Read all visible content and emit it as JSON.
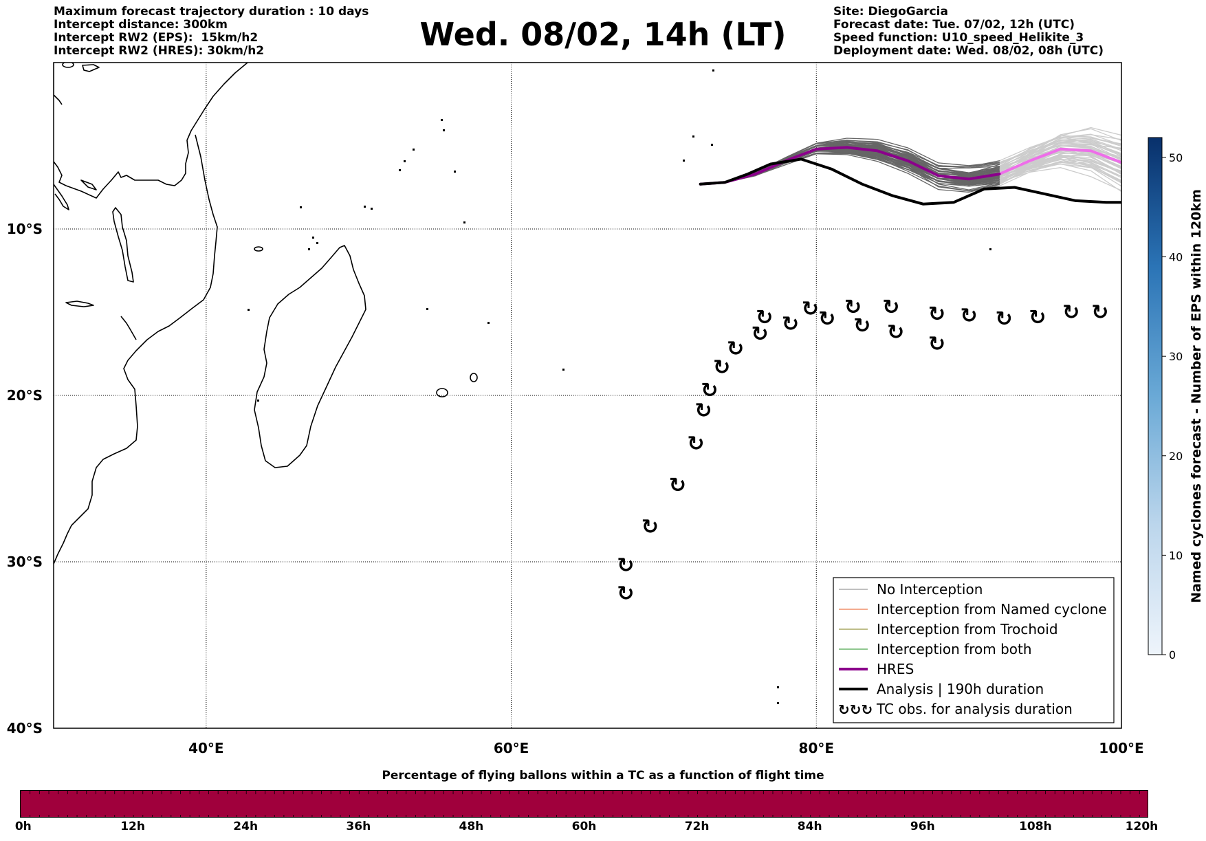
{
  "header": {
    "left_lines": [
      "Maximum forecast trajectory duration : 10 days",
      "Intercept distance: 300km",
      "Intercept RW2 (EPS):  15km/h2",
      "Intercept RW2 (HRES): 30km/h2"
    ],
    "title": "Wed. 08/02, 14h (LT)",
    "right_lines": [
      "Site: DiegoGarcia",
      "Forecast date: Tue. 07/02, 12h (UTC)",
      "Speed function: U10_speed_Helikite_3",
      "Deployment date: Wed. 08/02, 08h (UTC)"
    ]
  },
  "map": {
    "lon_range": [
      30,
      100
    ],
    "lat_range": [
      -40,
      0
    ],
    "lat_labels": [
      {
        "lat": -10,
        "text": "10°S"
      },
      {
        "lat": -20,
        "text": "20°S"
      },
      {
        "lat": -30,
        "text": "30°S"
      },
      {
        "lat": -40,
        "text": "40°S"
      }
    ],
    "lon_labels": [
      {
        "lon": 40,
        "text": "40°E"
      },
      {
        "lon": 60,
        "text": "60°E"
      },
      {
        "lon": 80,
        "text": "80°E"
      },
      {
        "lon": 100,
        "text": "100°E"
      }
    ],
    "deployment_site": {
      "lon": 72.4,
      "lat": -7.3
    },
    "hres_track": [
      [
        72.4,
        -7.3
      ],
      [
        74,
        -7.2
      ],
      [
        76,
        -6.7
      ],
      [
        78,
        -5.9
      ],
      [
        80,
        -5.2
      ],
      [
        82,
        -5.1
      ],
      [
        84,
        -5.3
      ],
      [
        86,
        -5.9
      ],
      [
        88,
        -6.8
      ],
      [
        90,
        -7.0
      ],
      [
        92,
        -6.7
      ],
      [
        94,
        -5.9
      ],
      [
        96,
        -5.2
      ],
      [
        98,
        -5.3
      ],
      [
        100,
        -6.0
      ]
    ],
    "hres_split_lon": 92,
    "colors": {
      "hres_primary": "#8b008b",
      "hres_extended": "#ee6ee9",
      "analysis": "#000000",
      "ensemble_primary": "#666666",
      "ensemble_extended": "#cccccc",
      "interception_named_cyclone": "#e8541c",
      "interception_trochoid": "#7e7b13",
      "interception_both": "#1f8f1f",
      "no_interception": "#808080",
      "percentage_bar": "#a0003c"
    },
    "analysis_track": [
      [
        72.4,
        -7.3
      ],
      [
        74,
        -7.2
      ],
      [
        75.5,
        -6.7
      ],
      [
        77,
        -6.1
      ],
      [
        79,
        -5.8
      ],
      [
        81,
        -6.4
      ],
      [
        83,
        -7.3
      ],
      [
        85,
        -8.0
      ],
      [
        87,
        -8.5
      ],
      [
        89,
        -8.4
      ],
      [
        91,
        -7.6
      ],
      [
        93,
        -7.5
      ],
      [
        95,
        -7.9
      ],
      [
        97,
        -8.3
      ],
      [
        99,
        -8.4
      ],
      [
        100,
        -8.4
      ]
    ],
    "tc_observations": [
      [
        67.5,
        -31.9
      ],
      [
        67.5,
        -30.2
      ],
      [
        69.1,
        -27.9
      ],
      [
        70.9,
        -25.4
      ],
      [
        72.1,
        -22.9
      ],
      [
        72.6,
        -20.9
      ],
      [
        73,
        -19.7
      ],
      [
        73.8,
        -18.3
      ],
      [
        74.7,
        -17.2
      ],
      [
        76.3,
        -16.3
      ],
      [
        76.6,
        -15.3
      ],
      [
        78.3,
        -15.7
      ],
      [
        79.6,
        -14.8
      ],
      [
        80.7,
        -15.4
      ],
      [
        82.4,
        -14.7
      ],
      [
        83,
        -15.8
      ],
      [
        84.9,
        -14.7
      ],
      [
        85.2,
        -16.2
      ],
      [
        87.9,
        -16.9
      ],
      [
        87.9,
        -15.1
      ],
      [
        90,
        -15.2
      ],
      [
        92.3,
        -15.4
      ],
      [
        94.5,
        -15.3
      ],
      [
        96.7,
        -15
      ],
      [
        98.6,
        -15
      ]
    ],
    "tc_symbol": "↻"
  },
  "legend": {
    "items": [
      {
        "label": "No Interception",
        "color": "#808080",
        "width": 1
      },
      {
        "label": "Interception from Named cyclone",
        "color": "#e8541c",
        "width": 1
      },
      {
        "label": "Interception from Trochoid",
        "color": "#7e7b13",
        "width": 1
      },
      {
        "label": "Interception from both",
        "color": "#1f8f1f",
        "width": 1
      },
      {
        "label": "HRES",
        "color": "#8b008b",
        "width": 4
      },
      {
        "label": "Analysis | 190h duration",
        "color": "#000000",
        "width": 4
      },
      {
        "label": "TC obs. for analysis duration",
        "symbol": "↻↻↻"
      }
    ]
  },
  "colorbar": {
    "title": "Named cyclones forecast - Number of EPS within 120km",
    "min": 0,
    "max": 52,
    "ticks": [
      0,
      10,
      20,
      30,
      40,
      50
    ],
    "color_low": "#e6eff9",
    "color_high": "#08306b"
  },
  "percentage": {
    "title": "Percentage of flying ballons within a TC as a function of flight time",
    "ticks": [
      "0h",
      "12h",
      "24h",
      "36h",
      "48h",
      "60h",
      "72h",
      "84h",
      "96h",
      "108h",
      "120h"
    ]
  }
}
